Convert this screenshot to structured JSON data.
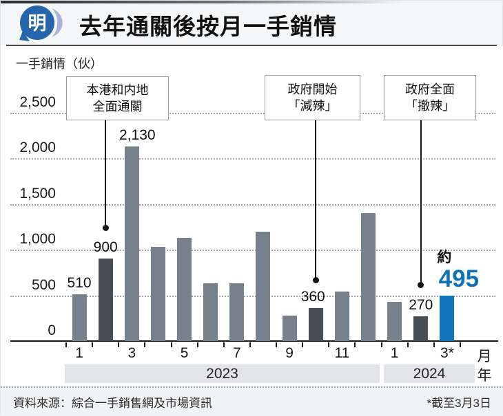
{
  "header": {
    "logo_char": "明",
    "title": "去年通關後按月一手銷情"
  },
  "chart_data": {
    "type": "bar",
    "title": "去年通關後按月一手銷情",
    "ylabel": "一手銷情（伙）",
    "ylim": [
      0,
      2500
    ],
    "grid": "horizontal dotted",
    "yticks": [
      {
        "value": 0,
        "label": "0"
      },
      {
        "value": 500,
        "label": "500"
      },
      {
        "value": 1000,
        "label": "1,000"
      },
      {
        "value": 1500,
        "label": "1,500"
      },
      {
        "value": 2000,
        "label": "2,000"
      },
      {
        "value": 2500,
        "label": "2,500"
      }
    ],
    "categories": [
      "2023-1",
      "2023-2",
      "2023-3",
      "2023-4",
      "2023-5",
      "2023-6",
      "2023-7",
      "2023-8",
      "2023-9",
      "2023-10",
      "2023-11",
      "2023-12",
      "2024-1",
      "2024-2",
      "2024-3"
    ],
    "values": [
      510,
      900,
      2130,
      1030,
      1130,
      630,
      630,
      1200,
      275,
      360,
      540,
      1400,
      430,
      270,
      495
    ],
    "bar_roles": [
      "normal",
      "dark",
      "normal",
      "normal",
      "normal",
      "normal",
      "normal",
      "normal",
      "normal",
      "dark",
      "normal",
      "normal",
      "normal",
      "dark",
      "highlight"
    ],
    "colors": {
      "normal": "#76818c",
      "dark": "#474e55",
      "highlight": "#1072b8"
    },
    "bar_labels": [
      {
        "index": 0,
        "text": "510"
      },
      {
        "index": 1,
        "text": "900"
      },
      {
        "index": 2,
        "text": "2,130",
        "dx": 8
      },
      {
        "index": 9,
        "text": "360",
        "dx": -4
      },
      {
        "index": 13,
        "text": "270"
      },
      {
        "index": 14,
        "text": "495",
        "prefix": "約",
        "style": "highlight",
        "dx": 17
      }
    ],
    "annotations": [
      {
        "lines": [
          "本港和内地",
          "全面通關"
        ],
        "target_index": 1
      },
      {
        "lines": [
          "政府開始",
          "「減辣」"
        ],
        "target_index": 9
      },
      {
        "lines": [
          "政府全面",
          "「撤辣」"
        ],
        "target_index": 13
      }
    ],
    "x_axis": {
      "tick_slot_labels": [
        {
          "slot": 0,
          "label": "1"
        },
        {
          "slot": 2,
          "label": "3"
        },
        {
          "slot": 4,
          "label": "5"
        },
        {
          "slot": 6,
          "label": "7"
        },
        {
          "slot": 8,
          "label": "9"
        },
        {
          "slot": 10,
          "label": "11"
        },
        {
          "slot": 12,
          "label": "1"
        },
        {
          "slot": 14,
          "label": "3*"
        }
      ],
      "unit_label": "月"
    },
    "year_bands": [
      {
        "label": "2023",
        "months": "1-12"
      },
      {
        "label": "2024",
        "months": "1-3"
      }
    ],
    "year_unit_label": "年"
  },
  "footer": {
    "source": "資料來源：綜合一手銷售網及市場資訊",
    "note": "*截至3月3日"
  }
}
